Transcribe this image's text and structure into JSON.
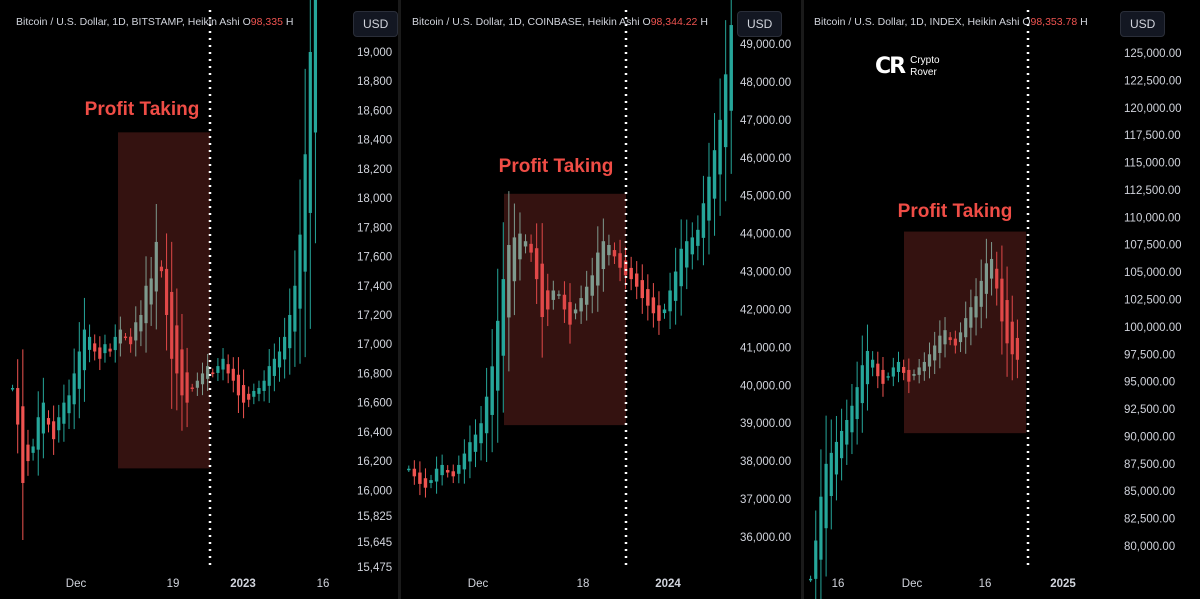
{
  "chart_data": [
    {
      "type": "candlestick",
      "title": "Bitcoin / U.S. Dollar, 1D, BITSTAMP, Heikin Ashi",
      "open_label": "O",
      "open_value": "98,335",
      "title_tail": "H",
      "currency": "USD",
      "annotation": "Profit Taking",
      "x_ticks": [
        "Dec",
        "19",
        "2023",
        "16"
      ],
      "y_ticks": [
        "19,000",
        "18,800",
        "18,600",
        "18,400",
        "18,200",
        "18,000",
        "17,800",
        "17,600",
        "17,400",
        "17,200",
        "17,000",
        "16,800",
        "16,600",
        "16,400",
        "16,200",
        "16,000",
        "15,825",
        "15,645",
        "15,475"
      ],
      "ylim": [
        15475,
        19200
      ],
      "profit_taking_range": [
        16150,
        18450
      ],
      "closes": [
        16700,
        16450,
        16050,
        16200,
        16300,
        16500,
        16600,
        16450,
        16350,
        16500,
        16600,
        16650,
        16800,
        16950,
        17100,
        17050,
        16950,
        16900,
        17000,
        16950,
        17050,
        17100,
        17050,
        17000,
        17150,
        17200,
        17400,
        17450,
        17700,
        17500,
        17200,
        16900,
        16800,
        16650,
        16600,
        16700,
        16750,
        16800,
        16850,
        16800,
        16850,
        16900,
        16800,
        16750,
        16650,
        16600,
        16620,
        16680,
        16700,
        16750,
        16850,
        16900,
        16950,
        17050,
        17200,
        17400,
        17750,
        18300,
        19000,
        19500
      ]
    },
    {
      "type": "candlestick",
      "title": "Bitcoin / U.S. Dollar, 1D, COINBASE, Heikin Ashi",
      "open_label": "O",
      "open_value": "98,344.22",
      "title_tail": "H",
      "currency": "USD",
      "annotation": "Profit Taking",
      "x_ticks": [
        "Dec",
        "18",
        "2024"
      ],
      "y_ticks": [
        "49,000.00",
        "48,000.00",
        "47,000.00",
        "46,000.00",
        "45,000.00",
        "44,000.00",
        "43,000.00",
        "42,000.00",
        "41,000.00",
        "40,000.00",
        "39,000.00",
        "38,000.00",
        "37,000.00",
        "36,000.00"
      ],
      "ylim": [
        35200,
        49300
      ],
      "profit_taking_range": [
        38950,
        45050
      ],
      "closes": [
        37800,
        37600,
        37400,
        37300,
        37500,
        37800,
        37900,
        37700,
        37600,
        37900,
        38200,
        38500,
        38700,
        39000,
        39700,
        40500,
        41700,
        42800,
        43700,
        43900,
        44000,
        43800,
        43500,
        42800,
        41800,
        42000,
        42500,
        42400,
        42000,
        41600,
        42000,
        42300,
        42600,
        42900,
        43500,
        43800,
        43700,
        43400,
        43100,
        42900,
        42800,
        42600,
        42300,
        42100,
        41900,
        41700,
        42000,
        42500,
        43000,
        43600,
        43800,
        43900,
        44100,
        44800,
        45500,
        46200,
        47000,
        48200,
        49500
      ]
    },
    {
      "type": "candlestick",
      "title": "Bitcoin / U.S. Dollar, 1D, INDEX, Heikin Ashi",
      "open_label": "O",
      "open_value": "98,353.78",
      "title_tail": "H",
      "currency": "USD",
      "annotation": "Profit Taking",
      "logo_text_line1": "Crypto",
      "logo_text_line2": "Rover",
      "x_ticks": [
        "16",
        "Dec",
        "16",
        "2025"
      ],
      "y_ticks": [
        "125,000.00",
        "122,500.00",
        "120,000.00",
        "117,500.00",
        "115,000.00",
        "112,500.00",
        "110,000.00",
        "107,500.00",
        "105,000.00",
        "102,500.00",
        "100,000.00",
        "97,500.00",
        "95,000.00",
        "92,500.00",
        "90,000.00",
        "87,500.00",
        "85,000.00",
        "82,500.00",
        "80,000.00"
      ],
      "ylim": [
        78000,
        126500
      ],
      "profit_taking_range": [
        90300,
        108700
      ],
      "closes": [
        77000,
        80500,
        84500,
        87500,
        88500,
        89500,
        90500,
        91500,
        92800,
        94500,
        96500,
        97800,
        97000,
        95500,
        94800,
        95500,
        96300,
        96800,
        95800,
        95000,
        95700,
        96300,
        96800,
        97500,
        98300,
        99200,
        99700,
        98800,
        98300,
        99500,
        100800,
        101800,
        102800,
        104200,
        105800,
        106200,
        103500,
        100500,
        98500,
        97500,
        97000
      ]
    }
  ]
}
